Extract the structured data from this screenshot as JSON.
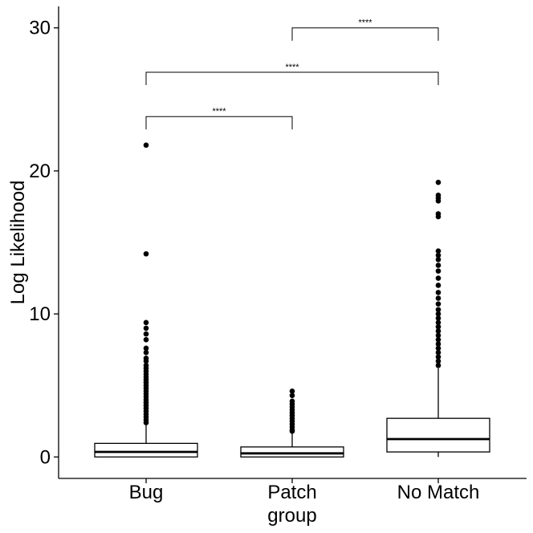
{
  "chart_data": {
    "type": "box",
    "xlabel": "group",
    "ylabel": "Log Likelihood",
    "categories": [
      "Bug",
      "Patch",
      "No Match"
    ],
    "ylim": [
      -1.5,
      31.5
    ],
    "yticks": [
      0,
      10,
      20,
      30
    ],
    "ytick_labels": [
      "0",
      "10",
      "20",
      "30"
    ],
    "grid": false,
    "legend": "none",
    "boxes": [
      {
        "category": "Bug",
        "q1": 0.0,
        "median": 0.35,
        "q3": 0.95,
        "whisker_low": 0.0,
        "whisker_high": 2.3,
        "outliers": [
          21.8,
          14.2,
          9.4,
          9.0,
          8.6,
          8.2,
          7.6,
          7.3,
          6.9,
          6.7,
          6.4,
          6.2,
          6.0,
          5.8,
          5.6,
          5.4,
          5.2,
          5.0,
          4.8,
          4.6,
          4.4,
          4.2,
          4.0,
          3.8,
          3.6,
          3.4,
          3.2,
          3.0,
          2.8,
          2.6,
          2.4
        ]
      },
      {
        "category": "Patch",
        "q1": 0.0,
        "median": 0.25,
        "q3": 0.7,
        "whisker_low": 0.0,
        "whisker_high": 1.7,
        "outliers": [
          4.6,
          4.3,
          3.9,
          3.7,
          3.5,
          3.3,
          3.1,
          2.9,
          2.7,
          2.5,
          2.3,
          2.1,
          1.9,
          1.8
        ]
      },
      {
        "category": "No Match",
        "q1": 0.35,
        "median": 1.25,
        "q3": 2.7,
        "whisker_low": 0.0,
        "whisker_high": 6.2,
        "outliers": [
          19.2,
          18.3,
          18.1,
          17.9,
          17.0,
          16.8,
          14.4,
          14.1,
          13.8,
          13.4,
          13.0,
          12.5,
          12.0,
          11.5,
          11.1,
          10.7,
          10.3,
          10.0,
          9.7,
          9.4,
          9.1,
          8.8,
          8.5,
          8.2,
          7.9,
          7.6,
          7.3,
          7.0,
          6.7,
          6.4
        ]
      }
    ],
    "comparisons": [
      {
        "from": "Bug",
        "to": "Patch",
        "y": 23.8,
        "label": "****"
      },
      {
        "from": "Bug",
        "to": "No Match",
        "y": 26.9,
        "label": "****"
      },
      {
        "from": "Patch",
        "to": "No Match",
        "y": 30.0,
        "label": "****"
      }
    ]
  }
}
